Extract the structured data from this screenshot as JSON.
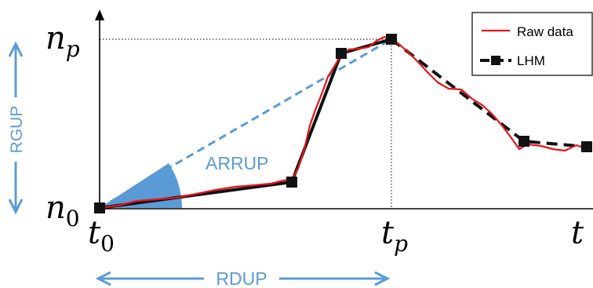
{
  "colors": {
    "blue": "#5b9bd5",
    "raw": "#e8141b",
    "lhm": "#111111",
    "axis": "#000000"
  },
  "axis_labels": {
    "n_p_base": "n",
    "n_p_sub": "p",
    "n_0_base": "n",
    "n_0_sub": "0",
    "t_0_base": "t",
    "t_0_sub": "0",
    "t_p_base": "t",
    "t_p_sub": "p",
    "t": "t"
  },
  "annotations": {
    "rgup": "RGUP",
    "rdup": "RDUP",
    "arrup": "ARRUP"
  },
  "legend": {
    "raw": "Raw data",
    "lhm": "LHM"
  },
  "curves": {
    "lhm_points": [
      [
        127,
        265
      ],
      [
        372,
        232
      ],
      [
        435,
        68
      ],
      [
        499,
        50
      ],
      [
        668,
        180
      ],
      [
        748,
        187
      ]
    ],
    "raw_points": [
      [
        127,
        265
      ],
      [
        150,
        262
      ],
      [
        175,
        256
      ],
      [
        200,
        254
      ],
      [
        225,
        252
      ],
      [
        250,
        247
      ],
      [
        275,
        242
      ],
      [
        300,
        238
      ],
      [
        325,
        236
      ],
      [
        345,
        234
      ],
      [
        362,
        230
      ],
      [
        372,
        228
      ],
      [
        380,
        215
      ],
      [
        388,
        190
      ],
      [
        395,
        160
      ],
      [
        402,
        140
      ],
      [
        410,
        120
      ],
      [
        418,
        98
      ],
      [
        426,
        85
      ],
      [
        435,
        70
      ],
      [
        445,
        63
      ],
      [
        458,
        62
      ],
      [
        470,
        60
      ],
      [
        480,
        52
      ],
      [
        490,
        47
      ],
      [
        499,
        50
      ],
      [
        508,
        56
      ],
      [
        520,
        66
      ],
      [
        532,
        78
      ],
      [
        545,
        92
      ],
      [
        558,
        105
      ],
      [
        572,
        113
      ],
      [
        588,
        114
      ],
      [
        602,
        126
      ],
      [
        615,
        134
      ],
      [
        628,
        146
      ],
      [
        640,
        160
      ],
      [
        652,
        176
      ],
      [
        662,
        190
      ],
      [
        672,
        184
      ],
      [
        690,
        186
      ],
      [
        705,
        190
      ],
      [
        720,
        192
      ],
      [
        735,
        185
      ],
      [
        748,
        190
      ]
    ]
  }
}
